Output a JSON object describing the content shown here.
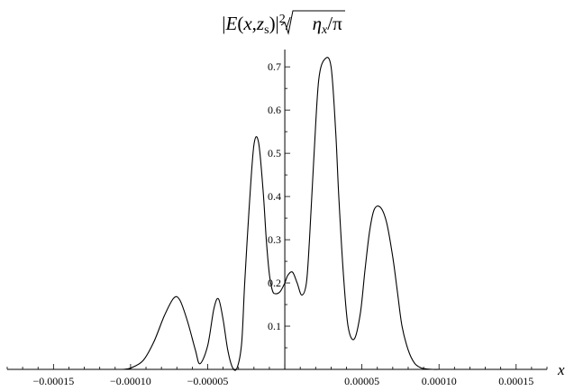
{
  "chart_data": {
    "type": "line",
    "title": "|E(x,z_s)|^2/√(η_x/π)",
    "title_parts": {
      "open": "|",
      "E": "E",
      "paren_open": "(",
      "x": "x",
      "comma": ",",
      "z": "z",
      "s": "s",
      "paren_close": ")|",
      "power": "2",
      "slash": "/",
      "eta": "η",
      "eta_sub": "x",
      "over_pi": "/π"
    },
    "xlabel": "x",
    "ylabel": "",
    "xlim": [
      -0.00018,
      0.00017
    ],
    "ylim": [
      0,
      0.74
    ],
    "x_ticks": [
      {
        "value": -0.00015,
        "label": "−0.00015"
      },
      {
        "value": -0.0001,
        "label": "−0.00010"
      },
      {
        "value": -5e-05,
        "label": "−0.00005"
      },
      {
        "value": 5e-05,
        "label": "0.00005"
      },
      {
        "value": 0.0001,
        "label": "0.00010"
      },
      {
        "value": 0.00015,
        "label": "0.00015"
      }
    ],
    "y_ticks": [
      {
        "value": 0.1,
        "label": "0.1"
      },
      {
        "value": 0.2,
        "label": "0.2"
      },
      {
        "value": 0.3,
        "label": "0.3"
      },
      {
        "value": 0.4,
        "label": "0.4"
      },
      {
        "value": 0.5,
        "label": "0.5"
      },
      {
        "value": 0.6,
        "label": "0.6"
      },
      {
        "value": 0.7,
        "label": "0.7"
      }
    ],
    "series": [
      {
        "x": [
          -0.000105,
          -0.0001,
          -9.2e-05,
          -8.5e-05,
          -7.8e-05,
          -7.2e-05,
          -6.8e-05,
          -6.3e-05,
          -5.8e-05,
          -5.5e-05,
          -5e-05,
          -4.6e-05,
          -4.3e-05,
          -4e-05,
          -3.7e-05,
          -3.4e-05,
          -3.1e-05,
          -2.8e-05,
          -2.6e-05,
          -2.3e-05,
          -2e-05,
          -1.7e-05,
          -1.4e-05,
          -1.2e-05,
          -1e-05,
          -8e-06,
          -6e-06,
          -3e-06,
          0.0,
          2e-06,
          5e-06,
          8e-06,
          1.1e-05,
          1.4e-05,
          1.6e-05,
          1.9e-05,
          2.2e-05,
          2.6e-05,
          3e-05,
          3.3e-05,
          3.5e-05,
          3.8e-05,
          4.1e-05,
          4.5e-05,
          4.9e-05,
          5.2e-05,
          5.5e-05,
          5.8e-05,
          6.2e-05,
          6.6e-05,
          7e-05,
          7.3e-05,
          7.6e-05,
          8e-05,
          8.4e-05,
          8.8e-05,
          9.2e-05,
          9.6e-05,
          0.0001,
          0.000105,
          0.00011,
          0.000116
        ],
        "y": [
          0.0,
          0.003,
          0.02,
          0.063,
          0.125,
          0.165,
          0.16,
          0.11,
          0.045,
          0.013,
          0.055,
          0.14,
          0.163,
          0.115,
          0.045,
          0.005,
          0.003,
          0.06,
          0.2,
          0.38,
          0.52,
          0.525,
          0.41,
          0.3,
          0.22,
          0.182,
          0.175,
          0.18,
          0.2,
          0.218,
          0.225,
          0.2,
          0.172,
          0.2,
          0.3,
          0.5,
          0.67,
          0.718,
          0.7,
          0.55,
          0.4,
          0.22,
          0.1,
          0.07,
          0.13,
          0.23,
          0.32,
          0.37,
          0.375,
          0.34,
          0.26,
          0.18,
          0.1,
          0.045,
          0.015,
          0.004,
          0.001,
          0.0,
          0.0,
          0.0,
          0.0,
          0.0
        ]
      }
    ]
  }
}
